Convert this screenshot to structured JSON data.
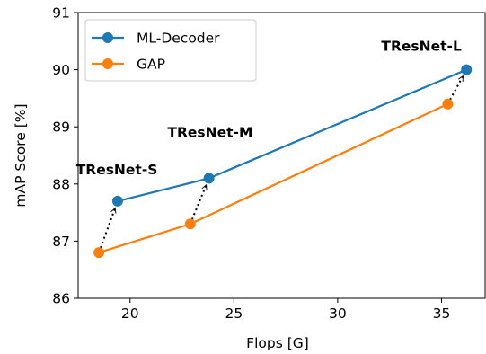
{
  "chart_data": {
    "type": "line",
    "xlabel": "Flops [G]",
    "ylabel": "mAP Score [%]",
    "xlim": [
      17.5,
      37.1
    ],
    "ylim": [
      86,
      91
    ],
    "xticks": [
      20,
      25,
      30,
      35
    ],
    "yticks": [
      86,
      87,
      88,
      89,
      90,
      91
    ],
    "grid": false,
    "legend_position": "top-left",
    "series": [
      {
        "name": "ML-Decoder",
        "color": "#1f77b4",
        "x": [
          19.4,
          23.8,
          36.2
        ],
        "y": [
          87.7,
          88.1,
          90.0
        ]
      },
      {
        "name": "GAP",
        "color": "#ff7f0e",
        "x": [
          18.5,
          22.9,
          35.3
        ],
        "y": [
          86.8,
          87.3,
          89.4
        ]
      }
    ],
    "annotations": [
      {
        "text": "TResNet-S",
        "x": 17.4,
        "y": 88.17
      },
      {
        "text": "TResNet-M",
        "x": 21.8,
        "y": 88.82
      },
      {
        "text": "TResNet-L",
        "x": 32.1,
        "y": 90.33
      }
    ],
    "arrows": [
      {
        "from": [
          18.5,
          86.8
        ],
        "to": [
          19.4,
          87.7
        ]
      },
      {
        "from": [
          22.9,
          87.3
        ],
        "to": [
          23.8,
          88.1
        ]
      },
      {
        "from": [
          35.3,
          89.4
        ],
        "to": [
          36.2,
          90.0
        ]
      }
    ]
  }
}
